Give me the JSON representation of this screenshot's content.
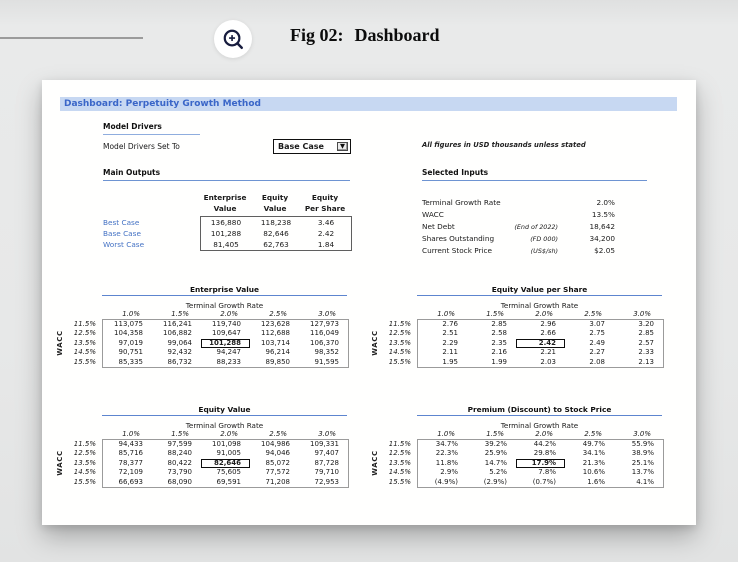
{
  "colors": {
    "accent_blue": "#4472c4",
    "title_bar_bg": "#c7d8f2",
    "title_text": "#3a66c8",
    "underline_blue": "#6e94d2",
    "icon_navy": "#171c3e"
  },
  "header": {
    "fig_number": "Fig 02:",
    "fig_title": "Dashboard",
    "zoom_icon": "magnifier-zoom-in"
  },
  "dashboard": {
    "title": "Dashboard: Perpetuity Growth Method",
    "figures_note": "All figures in USD thousands unless stated",
    "model_drivers": {
      "section_label": "Model Drivers",
      "set_to_label": "Model Drivers Set To",
      "dropdown_value": "Base Case"
    },
    "main_outputs": {
      "section_label": "Main Outputs",
      "columns": [
        {
          "line1": "Enterprise",
          "line2": "Value"
        },
        {
          "line1": "Equity",
          "line2": "Value"
        },
        {
          "line1": "Equity",
          "line2": "Per Share"
        }
      ],
      "rows": [
        {
          "label": "Best Case",
          "values": [
            "136,880",
            "118,238",
            "3.46"
          ]
        },
        {
          "label": "Base Case",
          "values": [
            "101,288",
            "82,646",
            "2.42"
          ]
        },
        {
          "label": "Worst Case",
          "values": [
            "81,405",
            "62,763",
            "1.84"
          ]
        }
      ]
    },
    "selected_inputs": {
      "section_label": "Selected Inputs",
      "rows": [
        {
          "label": "Terminal Growth Rate",
          "note": "",
          "value": "2.0%"
        },
        {
          "label": "WACC",
          "note": "",
          "value": "13.5%"
        },
        {
          "label": "Net Debt",
          "note": "(End of 2022)",
          "value": "18,642"
        },
        {
          "label": "Shares Outstanding",
          "note": "(FD 000)",
          "value": "34,200"
        },
        {
          "label": "Current Stock Price",
          "note": "(US$/sh)",
          "value": "$2.05"
        }
      ]
    },
    "sensitivity_axis": {
      "col_group_label": "Terminal Growth Rate",
      "row_group_label": "WACC",
      "col_headers": [
        "1.0%",
        "1.5%",
        "2.0%",
        "2.5%",
        "3.0%"
      ],
      "row_headers": [
        "11.5%",
        "12.5%",
        "13.5%",
        "14.5%",
        "15.5%"
      ],
      "highlight": {
        "row": 2,
        "col": 2
      }
    },
    "sensitivity_tables": [
      {
        "title": "Enterprise Value",
        "rows": [
          [
            "113,075",
            "116,241",
            "119,740",
            "123,628",
            "127,973"
          ],
          [
            "104,358",
            "106,882",
            "109,647",
            "112,688",
            "116,049"
          ],
          [
            "97,019",
            "99,064",
            "101,288",
            "103,714",
            "106,370"
          ],
          [
            "90,751",
            "92,432",
            "94,247",
            "96,214",
            "98,352"
          ],
          [
            "85,335",
            "86,732",
            "88,233",
            "89,850",
            "91,595"
          ]
        ]
      },
      {
        "title": "Equity Value per Share",
        "rows": [
          [
            "2.76",
            "2.85",
            "2.96",
            "3.07",
            "3.20"
          ],
          [
            "2.51",
            "2.58",
            "2.66",
            "2.75",
            "2.85"
          ],
          [
            "2.29",
            "2.35",
            "2.42",
            "2.49",
            "2.57"
          ],
          [
            "2.11",
            "2.16",
            "2.21",
            "2.27",
            "2.33"
          ],
          [
            "1.95",
            "1.99",
            "2.03",
            "2.08",
            "2.13"
          ]
        ]
      },
      {
        "title": "Equity Value",
        "rows": [
          [
            "94,433",
            "97,599",
            "101,098",
            "104,986",
            "109,331"
          ],
          [
            "85,716",
            "88,240",
            "91,005",
            "94,046",
            "97,407"
          ],
          [
            "78,377",
            "80,422",
            "82,646",
            "85,072",
            "87,728"
          ],
          [
            "72,109",
            "73,790",
            "75,605",
            "77,572",
            "79,710"
          ],
          [
            "66,693",
            "68,090",
            "69,591",
            "71,208",
            "72,953"
          ]
        ]
      },
      {
        "title": "Premium (Discount) to Stock Price",
        "rows": [
          [
            "34.7%",
            "39.2%",
            "44.2%",
            "49.7%",
            "55.9%"
          ],
          [
            "22.3%",
            "25.9%",
            "29.8%",
            "34.1%",
            "38.9%"
          ],
          [
            "11.8%",
            "14.7%",
            "17.9%",
            "21.3%",
            "25.1%"
          ],
          [
            "2.9%",
            "5.2%",
            "7.8%",
            "10.6%",
            "13.7%"
          ],
          [
            "(4.9%)",
            "(2.9%)",
            "(0.7%)",
            "1.6%",
            "4.1%"
          ]
        ]
      }
    ]
  }
}
